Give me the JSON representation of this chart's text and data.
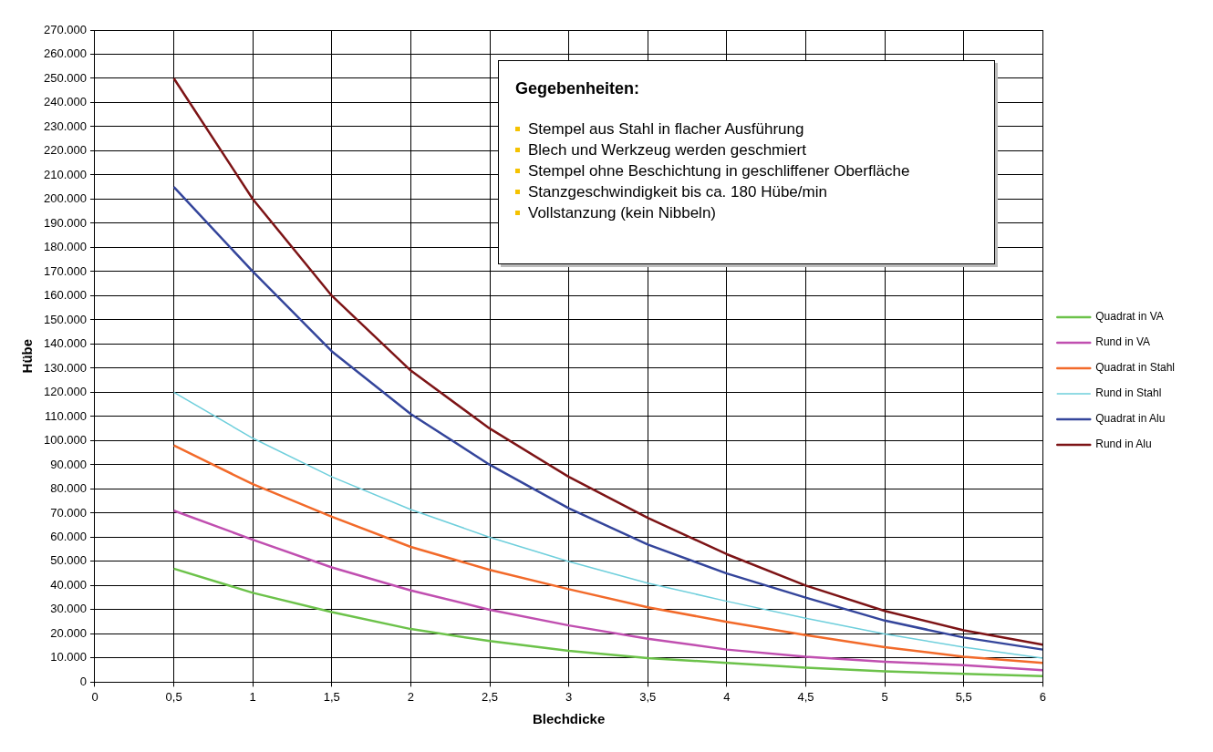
{
  "chart_data": {
    "type": "line",
    "xlabel": "Blechdicke",
    "ylabel": "Hübe",
    "x": [
      0.5,
      1,
      1.5,
      2,
      2.5,
      3,
      3.5,
      4,
      4.5,
      5,
      5.5,
      6
    ],
    "xlim": [
      0,
      6
    ],
    "xticks": [
      0,
      {
        "value": 0.5,
        "label": "0,5"
      },
      1,
      {
        "value": 1.5,
        "label": "1,5"
      },
      2,
      {
        "value": 2.5,
        "label": "2,5"
      },
      3,
      {
        "value": 3.5,
        "label": "3,5"
      },
      4,
      {
        "value": 4.5,
        "label": "4,5"
      },
      5,
      {
        "value": 5.5,
        "label": "5,5"
      },
      6
    ],
    "ylim": [
      0,
      270000
    ],
    "yticks": [
      0,
      {
        "value": 10000,
        "label": "10.000"
      },
      {
        "value": 20000,
        "label": "20.000"
      },
      {
        "value": 30000,
        "label": "30.000"
      },
      {
        "value": 40000,
        "label": "40.000"
      },
      {
        "value": 50000,
        "label": "50.000"
      },
      {
        "value": 60000,
        "label": "60.000"
      },
      {
        "value": 70000,
        "label": "70.000"
      },
      {
        "value": 80000,
        "label": "80.000"
      },
      {
        "value": 90000,
        "label": "90.000"
      },
      {
        "value": 100000,
        "label": "100.000"
      },
      {
        "value": 110000,
        "label": "110.000"
      },
      {
        "value": 120000,
        "label": "120.000"
      },
      {
        "value": 130000,
        "label": "130.000"
      },
      {
        "value": 140000,
        "label": "140.000"
      },
      {
        "value": 150000,
        "label": "150.000"
      },
      {
        "value": 160000,
        "label": "160.000"
      },
      {
        "value": 170000,
        "label": "170.000"
      },
      {
        "value": 180000,
        "label": "180.000"
      },
      {
        "value": 190000,
        "label": "190.000"
      },
      {
        "value": 200000,
        "label": "200.000"
      },
      {
        "value": 210000,
        "label": "210.000"
      },
      {
        "value": 220000,
        "label": "220.000"
      },
      {
        "value": 230000,
        "label": "230.000"
      },
      {
        "value": 240000,
        "label": "240.000"
      },
      {
        "value": 250000,
        "label": "250.000"
      },
      {
        "value": 260000,
        "label": "260.000"
      },
      {
        "value": 270000,
        "label": "270.000"
      }
    ],
    "grid": true,
    "legend": "right",
    "marker": "none",
    "line_style": "solid",
    "annotations": [
      "Gegebenheiten:",
      "Stempel aus Stahl in flacher Ausführung",
      "Blech und Werkzeug werden geschmiert",
      "Stempel ohne Beschichtung in geschliffener Oberfläche",
      "Stanzgeschwindigkeit bis ca. 180 Hübe/min",
      "Vollstanzung (kein Nibbeln)"
    ],
    "series": [
      {
        "name": "Quadrat in VA",
        "color": "#6cc24a",
        "values": [
          47000,
          37000,
          29000,
          22000,
          17000,
          13000,
          10000,
          8000,
          6000,
          4500,
          3500,
          2500
        ]
      },
      {
        "name": "Rund in VA",
        "color": "#c04fb0",
        "values": [
          71000,
          59000,
          47500,
          38000,
          30000,
          23500,
          18000,
          13500,
          10500,
          8500,
          7000,
          5000
        ]
      },
      {
        "name": "Quadrat in Stahl",
        "color": "#f26a2a",
        "values": [
          98000,
          82000,
          68500,
          56000,
          46500,
          38500,
          31000,
          25000,
          19500,
          14500,
          10500,
          8000
        ]
      },
      {
        "name": "Rund in Stahl",
        "color": "#6fcfdc",
        "values": [
          120000,
          101000,
          85000,
          71500,
          60000,
          50000,
          41000,
          33500,
          26500,
          20000,
          14500,
          10000
        ]
      },
      {
        "name": "Quadrat in Alu",
        "color": "#34459b",
        "values": [
          205000,
          170000,
          137000,
          111000,
          90000,
          72000,
          57000,
          45000,
          35000,
          25500,
          18500,
          13500
        ]
      },
      {
        "name": "Rund in Alu",
        "color": "#7d1416",
        "values": [
          250000,
          200000,
          160000,
          129000,
          105000,
          85000,
          68000,
          53000,
          40000,
          29500,
          21500,
          15500
        ]
      }
    ]
  }
}
